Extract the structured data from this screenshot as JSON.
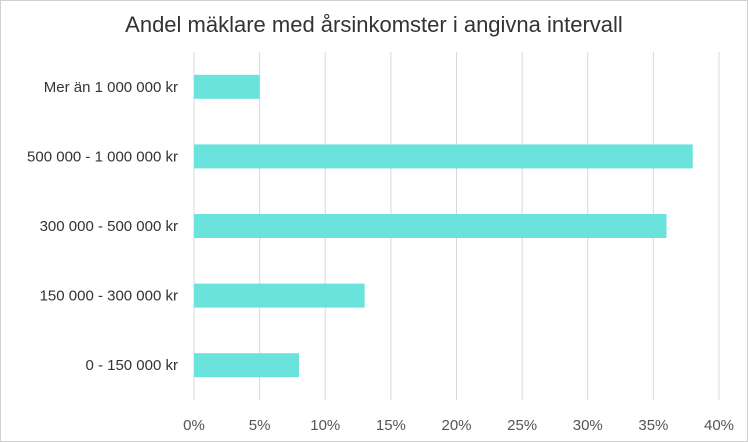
{
  "chart_data": {
    "type": "bar",
    "orientation": "horizontal",
    "title": "Andel mäklare med årsinkomster i angivna intervall",
    "categories": [
      "Mer än 1 000 000 kr",
      "500 000 - 1 000 000 kr",
      "300 000 - 500 000 kr",
      "150 000 - 300 000 kr",
      "0 - 150 000 kr"
    ],
    "values": [
      5,
      38,
      36,
      13,
      8
    ],
    "xticks": [
      "0%",
      "5%",
      "10%",
      "15%",
      "20%",
      "25%",
      "30%",
      "35%",
      "40%"
    ],
    "xlim": [
      0,
      40
    ],
    "grid": "vertical",
    "legend": "none",
    "colors": {
      "bar": "#6be3dd",
      "grid": "#d9d9d9"
    }
  }
}
